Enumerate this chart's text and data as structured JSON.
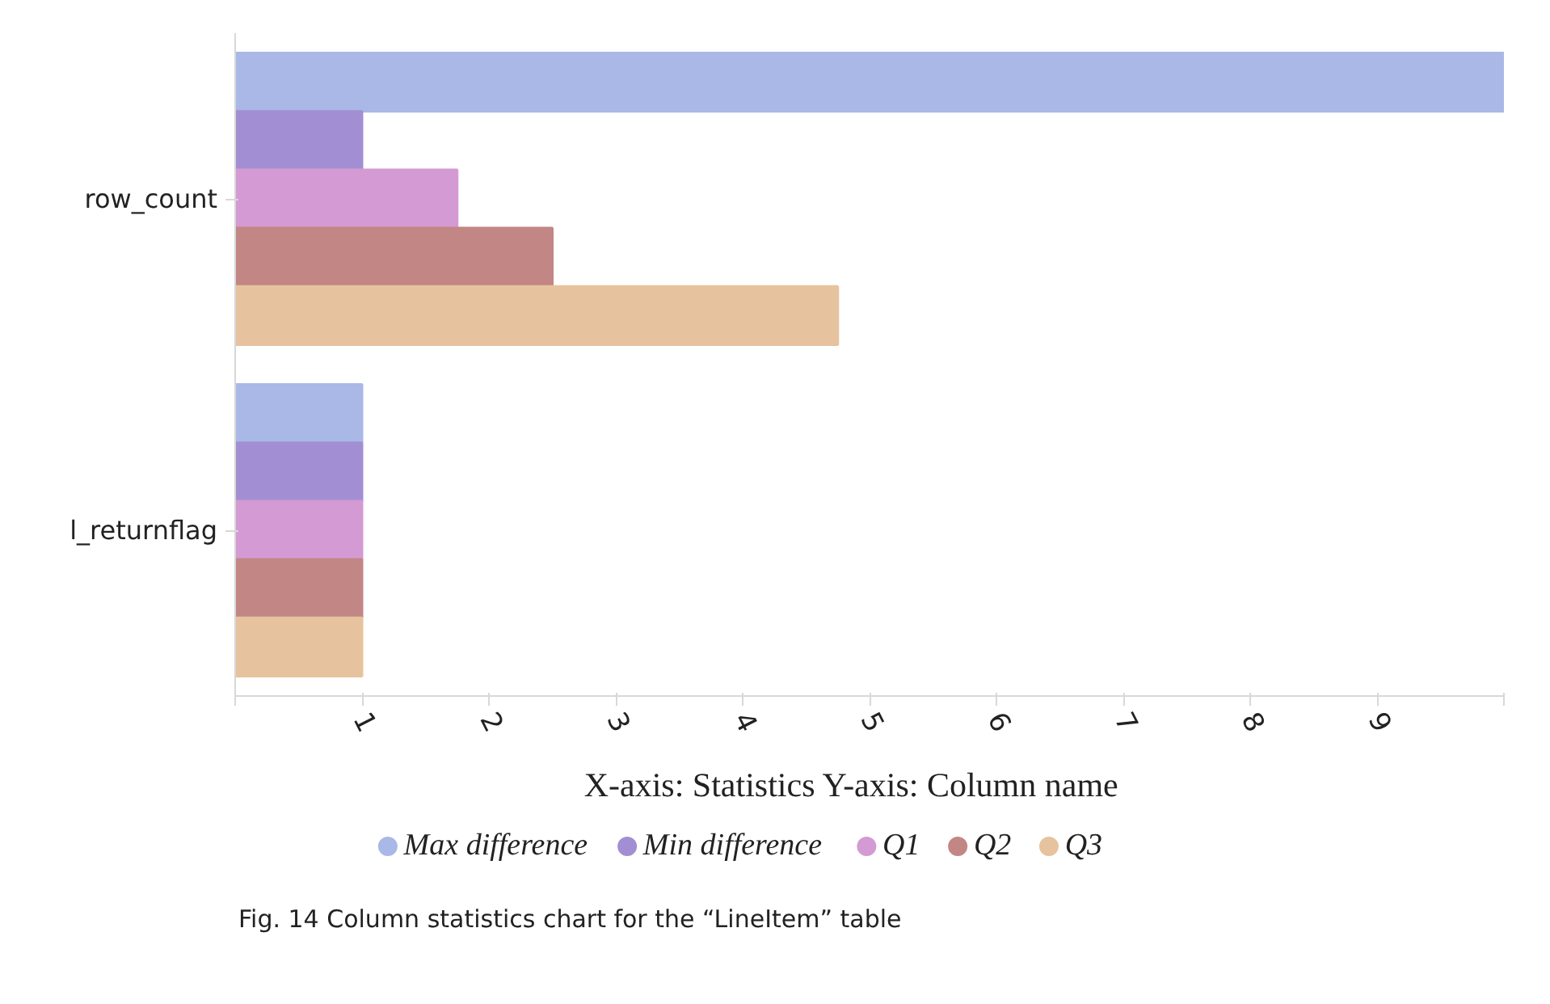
{
  "chart_data": {
    "type": "bar",
    "orientation": "horizontal",
    "xlabel": "X-axis: Statistics     Y-axis: Column name",
    "categories": [
      "row_count",
      "l_returnflag"
    ],
    "series": [
      {
        "name": "Max difference",
        "color": "#a9b8e6",
        "values": [
          10,
          1
        ]
      },
      {
        "name": "Min difference",
        "color": "#a28fd3",
        "values": [
          1,
          1
        ]
      },
      {
        "name": "Q1",
        "color": "#d49ad4",
        "values": [
          1.75,
          1
        ]
      },
      {
        "name": "Q2",
        "color": "#c28684",
        "values": [
          2.5,
          1
        ]
      },
      {
        "name": "Q3",
        "color": "#e6c39e",
        "values": [
          4.75,
          1
        ]
      }
    ],
    "xlim": [
      0,
      10
    ],
    "xticks": [
      {
        "value": 0,
        "label": null
      },
      1,
      2,
      3,
      4,
      5,
      6,
      7,
      8,
      9,
      {
        "value": 10,
        "label": null
      }
    ],
    "grid": false,
    "legend": "bottom",
    "annotations": [
      "Fig. 14 Column statistics chart for the “LineItem” table"
    ]
  }
}
